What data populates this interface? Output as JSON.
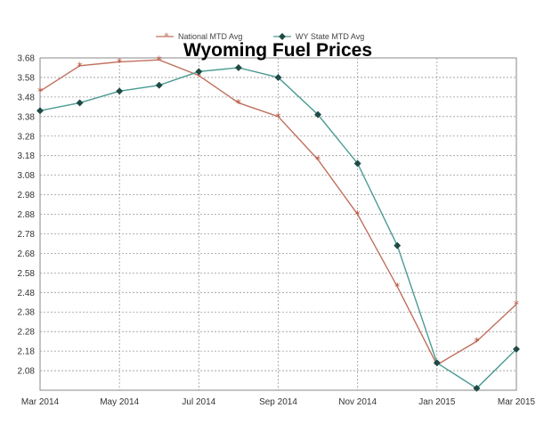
{
  "chart_data": {
    "type": "line",
    "title": "Wyoming Fuel Prices",
    "x": [
      "Mar 2014",
      "Apr 2014",
      "May 2014",
      "Jun 2014",
      "Jul 2014",
      "Aug 2014",
      "Sep 2014",
      "Oct 2014",
      "Nov 2014",
      "Dec 2014",
      "Jan 2015",
      "Feb 2015",
      "Mar 2015"
    ],
    "x_tick_labels": [
      "Mar 2014",
      "May 2014",
      "Jul 2014",
      "Sep 2014",
      "Nov 2014",
      "Jan 2015",
      "Mar 2015"
    ],
    "y_tick_labels": [
      "3.68",
      "3.58",
      "3.48",
      "3.38",
      "3.28",
      "3.18",
      "3.08",
      "2.98",
      "2.88",
      "2.78",
      "2.68",
      "2.58",
      "2.48",
      "2.38",
      "2.28",
      "2.18",
      "2.08"
    ],
    "ylim": [
      1.98,
      3.68
    ],
    "grid": true,
    "legend_position": "top-center",
    "series": [
      {
        "name": "National MTD Avg",
        "color": "#c0705e",
        "marker": "star",
        "values": [
          3.51,
          3.64,
          3.66,
          3.67,
          3.59,
          3.45,
          3.38,
          3.16,
          2.88,
          2.51,
          2.11,
          2.23,
          2.42
        ]
      },
      {
        "name": "WY State MTD Avg",
        "color": "#4b9b93",
        "marker": "diamond",
        "values": [
          3.41,
          3.45,
          3.51,
          3.54,
          3.61,
          3.63,
          3.58,
          3.39,
          3.14,
          2.72,
          2.12,
          1.99,
          2.19
        ]
      }
    ]
  }
}
